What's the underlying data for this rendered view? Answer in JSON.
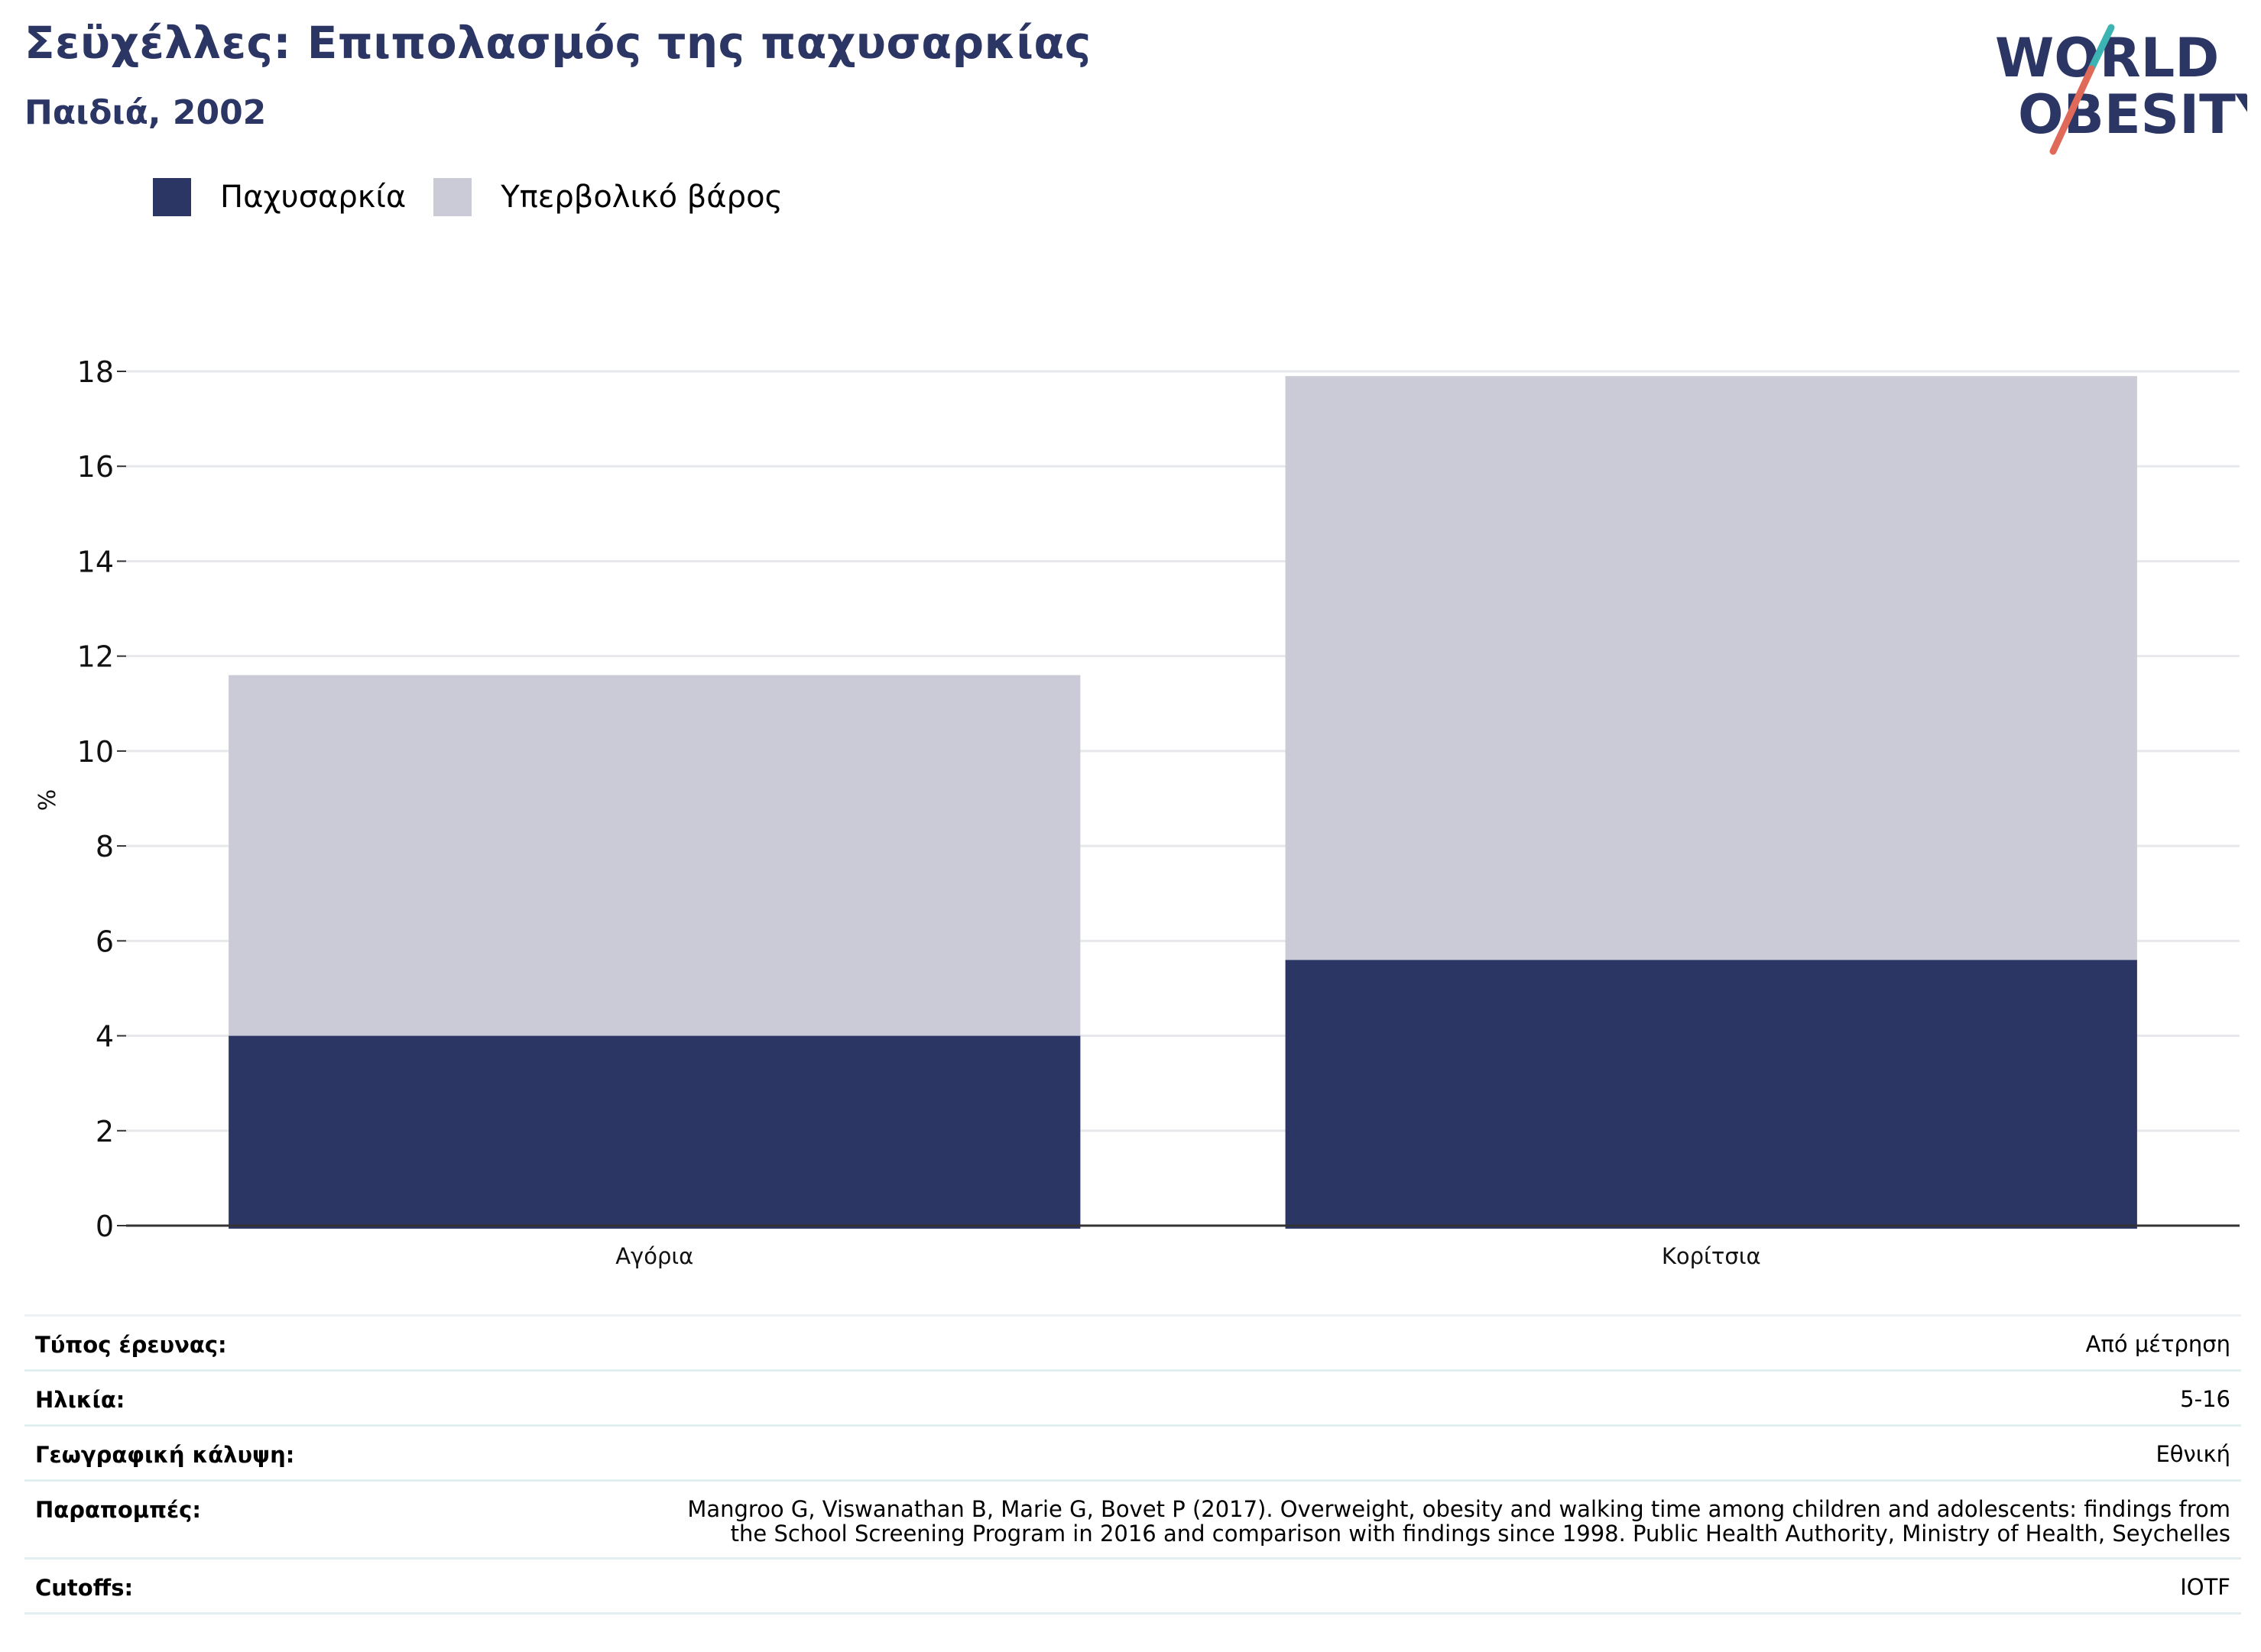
{
  "header": {
    "title": "Σεϋχέλλες: Επιπολασμός της παχυσαρκίας",
    "subtitle": "Παιδιά, 2002"
  },
  "logo": {
    "line1": "WORLD",
    "line2": "OBESITY",
    "colors": {
      "text": "#2b3664",
      "slash_teal": "#3cb4b4",
      "slash_red": "#e06a5a"
    }
  },
  "legend": [
    {
      "label": "Παχυσαρκία",
      "color": "#2b3664"
    },
    {
      "label": "Υπερβολικό βάρος",
      "color": "#cacbd7"
    }
  ],
  "chart_data": {
    "type": "bar",
    "stacked": true,
    "categories": [
      "Αγόρια",
      "Κορίτσια"
    ],
    "series": [
      {
        "name": "Παχυσαρκία",
        "values": [
          4.0,
          5.6
        ],
        "color": "#2b3664"
      },
      {
        "name": "Υπερβολικό βάρος",
        "values": [
          7.6,
          12.3
        ],
        "color": "#cacbd7"
      }
    ],
    "ylabel": "%",
    "ylim": [
      0,
      18
    ],
    "yticks": [
      0,
      2,
      4,
      6,
      8,
      10,
      12,
      14,
      16,
      18
    ],
    "grid": true,
    "legend_position": "top-left"
  },
  "info": [
    {
      "label": "Τύπος έρευνας:",
      "value": "Από μέτρηση"
    },
    {
      "label": "Ηλικία:",
      "value": "5-16"
    },
    {
      "label": "Γεωγραφική κάλυψη:",
      "value": "Εθνική"
    },
    {
      "label": "Παραπομπές:",
      "value": "Mangroo G, Viswanathan B, Marie G, Bovet P (2017). Overweight, obesity and walking time among children and adolescents: findings from\nthe School Screening Program in 2016 and comparison with findings since 1998. Public Health Authority, Ministry of Health, Seychelles"
    },
    {
      "label": "Cutoffs:",
      "value": "IOTF"
    }
  ]
}
